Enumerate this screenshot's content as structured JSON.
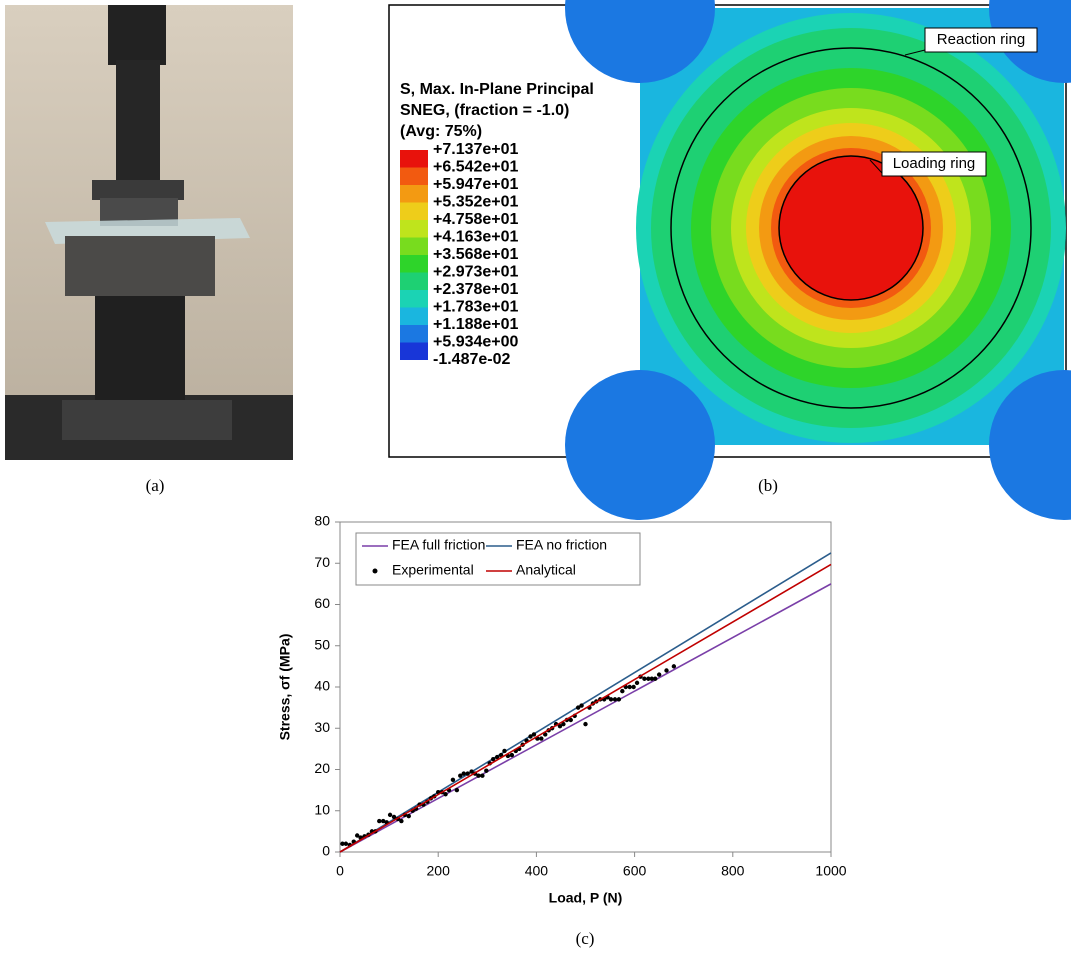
{
  "captions": [
    "(a)",
    "(b)",
    "(c)"
  ],
  "contour": {
    "legend_title": [
      "S, Max. In-Plane Principal",
      "SNEG, (fraction = -1.0)",
      "(Avg: 75%)"
    ],
    "scale_labels": [
      "+7.137e+01",
      "+6.542e+01",
      "+5.947e+01",
      "+5.352e+01",
      "+4.758e+01",
      "+4.163e+01",
      "+3.568e+01",
      "+2.973e+01",
      "+2.378e+01",
      "+1.783e+01",
      "+1.188e+01",
      "+5.934e+00",
      "-1.487e-02"
    ],
    "band_colors": [
      "#e8120c",
      "#f25a10",
      "#f39a12",
      "#eecd1a",
      "#bfe41c",
      "#78dc1e",
      "#2ed42a",
      "#1ed073",
      "#1bd3b4",
      "#1ab6df",
      "#1b78e2",
      "#1836d8"
    ],
    "annotations": [
      "Reaction ring",
      "Loading ring"
    ]
  },
  "chart_data": {
    "type": "line",
    "xlabel": "Load, P (N)",
    "ylabel": "Stress, σf (MPa)",
    "xlim": [
      0,
      1000
    ],
    "ylim": [
      0,
      80
    ],
    "xticks": [
      0,
      200,
      400,
      600,
      800,
      1000
    ],
    "yticks": [
      0,
      10,
      20,
      30,
      40,
      50,
      60,
      70,
      80
    ],
    "grid": false,
    "legend": "upper left",
    "series": [
      {
        "name": "FEA full friction",
        "color": "#7a3fa8",
        "mode": "line",
        "x": [
          0,
          1000
        ],
        "values": [
          0,
          65
        ]
      },
      {
        "name": "FEA no friction",
        "color": "#2b5d8c",
        "mode": "line",
        "x": [
          0,
          1000
        ],
        "values": [
          0,
          72.5
        ]
      },
      {
        "name": "Experimental",
        "color": "#000000",
        "mode": "markers",
        "x": [
          5,
          12,
          20,
          28,
          35,
          42,
          50,
          58,
          65,
          72,
          80,
          88,
          95,
          102,
          110,
          118,
          125,
          132,
          140,
          148,
          155,
          162,
          170,
          178,
          185,
          192,
          200,
          208,
          215,
          222,
          230,
          238,
          245,
          252,
          260,
          268,
          275,
          282,
          290,
          298,
          305,
          312,
          320,
          328,
          335,
          342,
          350,
          358,
          365,
          372,
          380,
          388,
          395,
          402,
          410,
          418,
          425,
          432,
          440,
          448,
          455,
          462,
          470,
          478,
          485,
          492,
          500,
          508,
          515,
          522,
          530,
          538,
          545,
          552,
          560,
          568,
          575,
          582,
          590,
          598,
          605,
          612,
          620,
          628,
          635,
          642,
          650,
          665,
          680
        ],
        "values": [
          2,
          2,
          1.7,
          2.5,
          4,
          3.5,
          3.8,
          4.2,
          5,
          5,
          7.5,
          7.5,
          7.2,
          9,
          8.5,
          8,
          7.5,
          9,
          8.7,
          10,
          10.5,
          11.5,
          11.5,
          12.2,
          13,
          13.5,
          14.5,
          14.5,
          14,
          15,
          17.5,
          15,
          18.5,
          19,
          19,
          19.5,
          19,
          18.5,
          18.5,
          19.7,
          21.5,
          22.5,
          23,
          23.5,
          24.5,
          23.3,
          23.5,
          24.5,
          25,
          26,
          27,
          28,
          28.5,
          27.5,
          27.5,
          28.5,
          29.5,
          30,
          31,
          30.5,
          31,
          32,
          32,
          33,
          35,
          35.5,
          31,
          35,
          36,
          36.5,
          37,
          37,
          37.5,
          37,
          37,
          37,
          39,
          40,
          40,
          40,
          41,
          42.5,
          42,
          42,
          42,
          42,
          43,
          44,
          45
        ]
      },
      {
        "name": "Analytical",
        "color": "#c00000",
        "mode": "line",
        "x": [
          0,
          1000
        ],
        "values": [
          0,
          69.7
        ]
      }
    ]
  }
}
